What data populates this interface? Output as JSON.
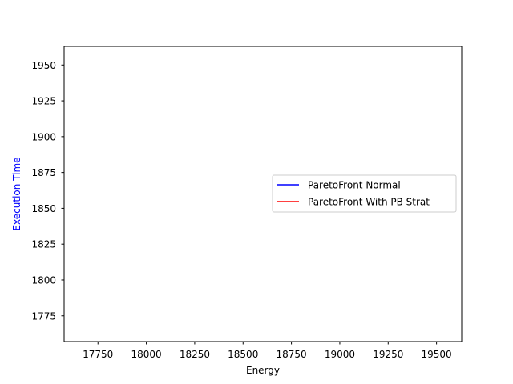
{
  "chart_data": {
    "type": "line",
    "title": "",
    "xlabel": "Energy",
    "ylabel": "Execution Time",
    "ylabel_color": "#0000ff",
    "xlim": [
      17575,
      19630
    ],
    "ylim": [
      1757,
      1963
    ],
    "xticks": [
      17750,
      18000,
      18250,
      18500,
      18750,
      19000,
      19250,
      19500
    ],
    "yticks": [
      1775,
      1800,
      1825,
      1850,
      1875,
      1900,
      1925,
      1950
    ],
    "grid": false,
    "legend_position": "center-right",
    "series": [
      {
        "name": "ParetoFront Normal",
        "color": "#0000ff",
        "x": [],
        "y": []
      },
      {
        "name": "ParetoFront With PB Strat",
        "color": "#ff0000",
        "x": [],
        "y": []
      }
    ]
  }
}
